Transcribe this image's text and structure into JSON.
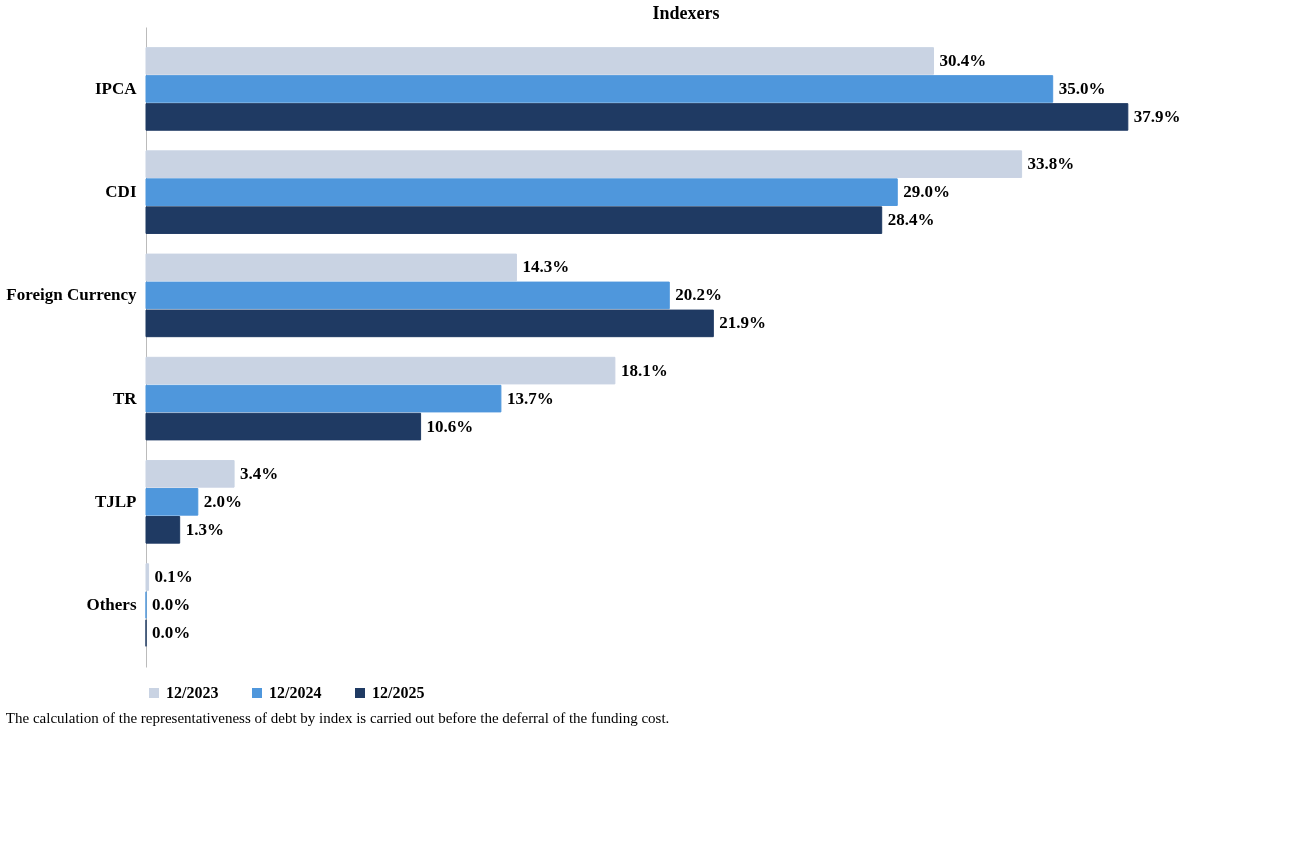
{
  "chart_data": {
    "type": "bar",
    "orientation": "horizontal",
    "title": "Indexers",
    "categories": [
      "IPCA",
      "CDI",
      "Foreign Currency",
      "TR",
      "TJLP",
      "Others"
    ],
    "series": [
      {
        "name": "12/2023",
        "color": "#c9d3e3",
        "values": [
          30.4,
          33.8,
          14.3,
          18.1,
          3.4,
          0.1
        ],
        "value_labels": [
          "30.4%",
          "33.8%",
          "14.3%",
          "18.1%",
          "3.4%",
          "0.1%"
        ]
      },
      {
        "name": "12/2024",
        "color": "#4f97dc",
        "values": [
          35.0,
          29.0,
          20.2,
          13.7,
          2.0,
          0.0
        ],
        "value_labels": [
          "35.0%",
          "29.0%",
          "20.2%",
          "13.7%",
          "2.0%",
          "0.0%"
        ]
      },
      {
        "name": "12/2025",
        "color": "#1f3a63",
        "values": [
          37.9,
          28.4,
          21.9,
          10.6,
          1.3,
          0.0
        ],
        "value_labels": [
          "37.9%",
          "28.4%",
          "21.9%",
          "10.6%",
          "1.3%",
          "0.0%"
        ]
      }
    ],
    "legend": "bottom",
    "annotations": [
      "The calculation of the representativeness of debt by index is carried out before the deferral of the funding cost."
    ]
  }
}
